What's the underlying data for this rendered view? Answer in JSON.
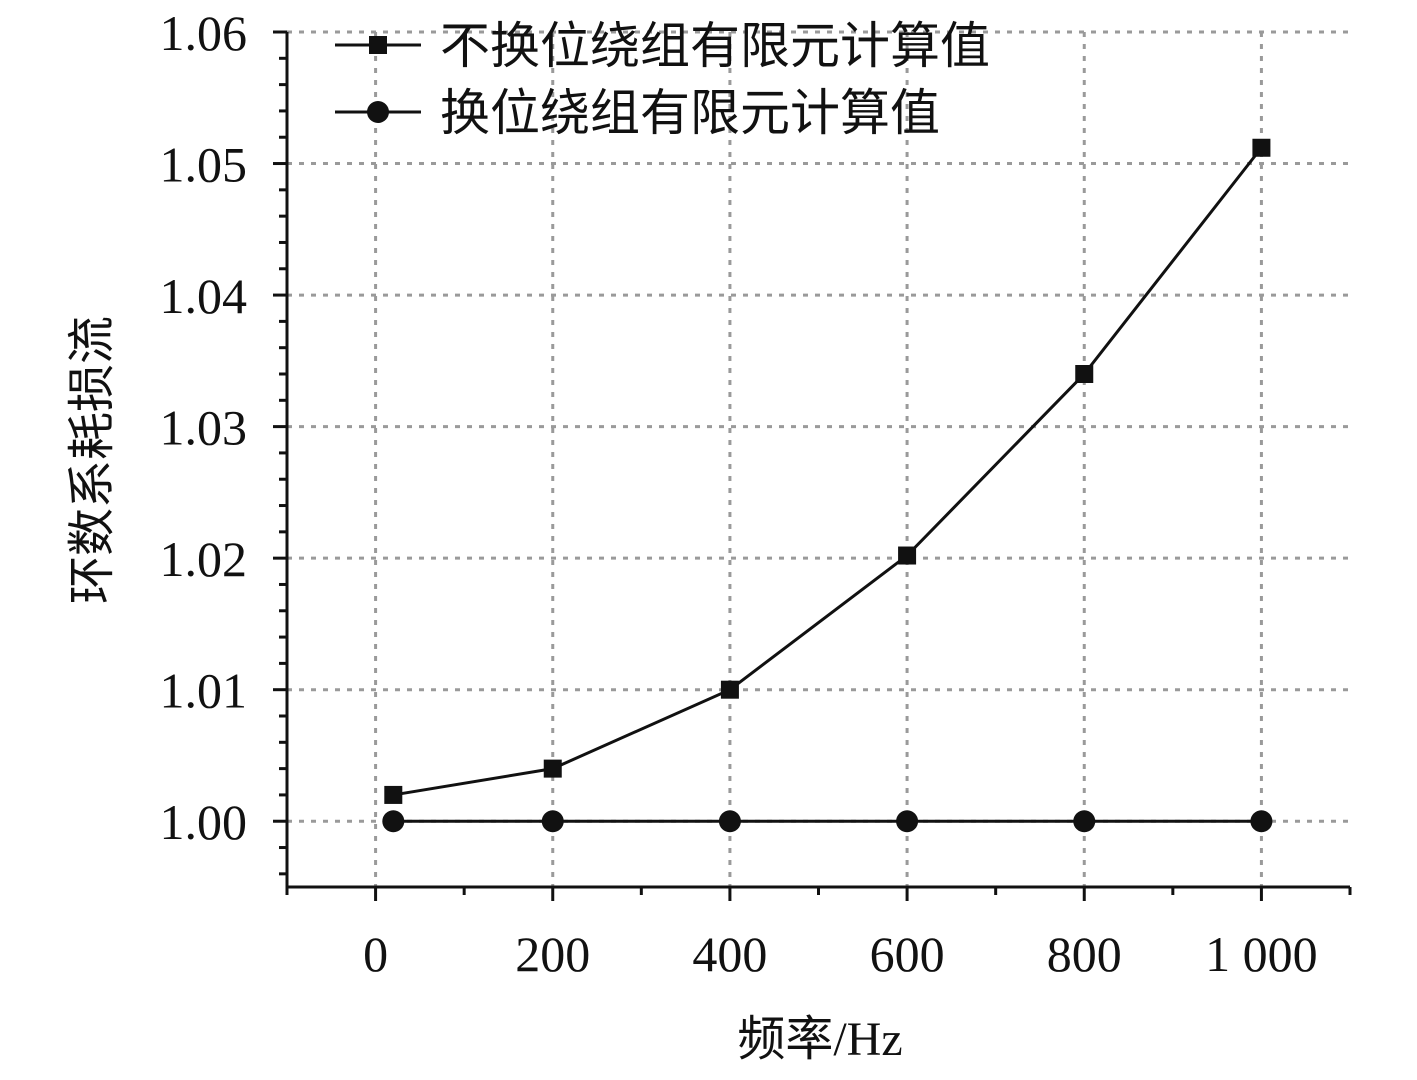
{
  "chart_data": {
    "type": "line",
    "xlabel": "频率/Hz",
    "ylabel": "环数系耗损流",
    "x": [
      20,
      200,
      400,
      600,
      800,
      1000
    ],
    "x_ticks": [
      0,
      200,
      400,
      600,
      800,
      1000
    ],
    "x_tick_labels": [
      "0",
      "200",
      "400",
      "600",
      "800",
      "1 000"
    ],
    "xlim": [
      -100,
      1100
    ],
    "y_ticks": [
      1.0,
      1.01,
      1.02,
      1.03,
      1.04,
      1.05,
      1.06
    ],
    "y_tick_labels": [
      "1.00",
      "1.01",
      "1.02",
      "1.03",
      "1.04",
      "1.05",
      "1.06"
    ],
    "ylim": [
      0.995,
      1.06
    ],
    "grid": true,
    "legend_position": "top-left",
    "series": [
      {
        "name": "不换位绕组有限元计算值",
        "marker": "square",
        "color": "#111111",
        "values": [
          1.002,
          1.004,
          1.01,
          1.0202,
          1.034,
          1.0512
        ]
      },
      {
        "name": "换位绕组有限元计算值",
        "marker": "circle",
        "color": "#111111",
        "values": [
          1.0,
          1.0,
          1.0,
          1.0,
          1.0,
          1.0
        ]
      }
    ]
  }
}
